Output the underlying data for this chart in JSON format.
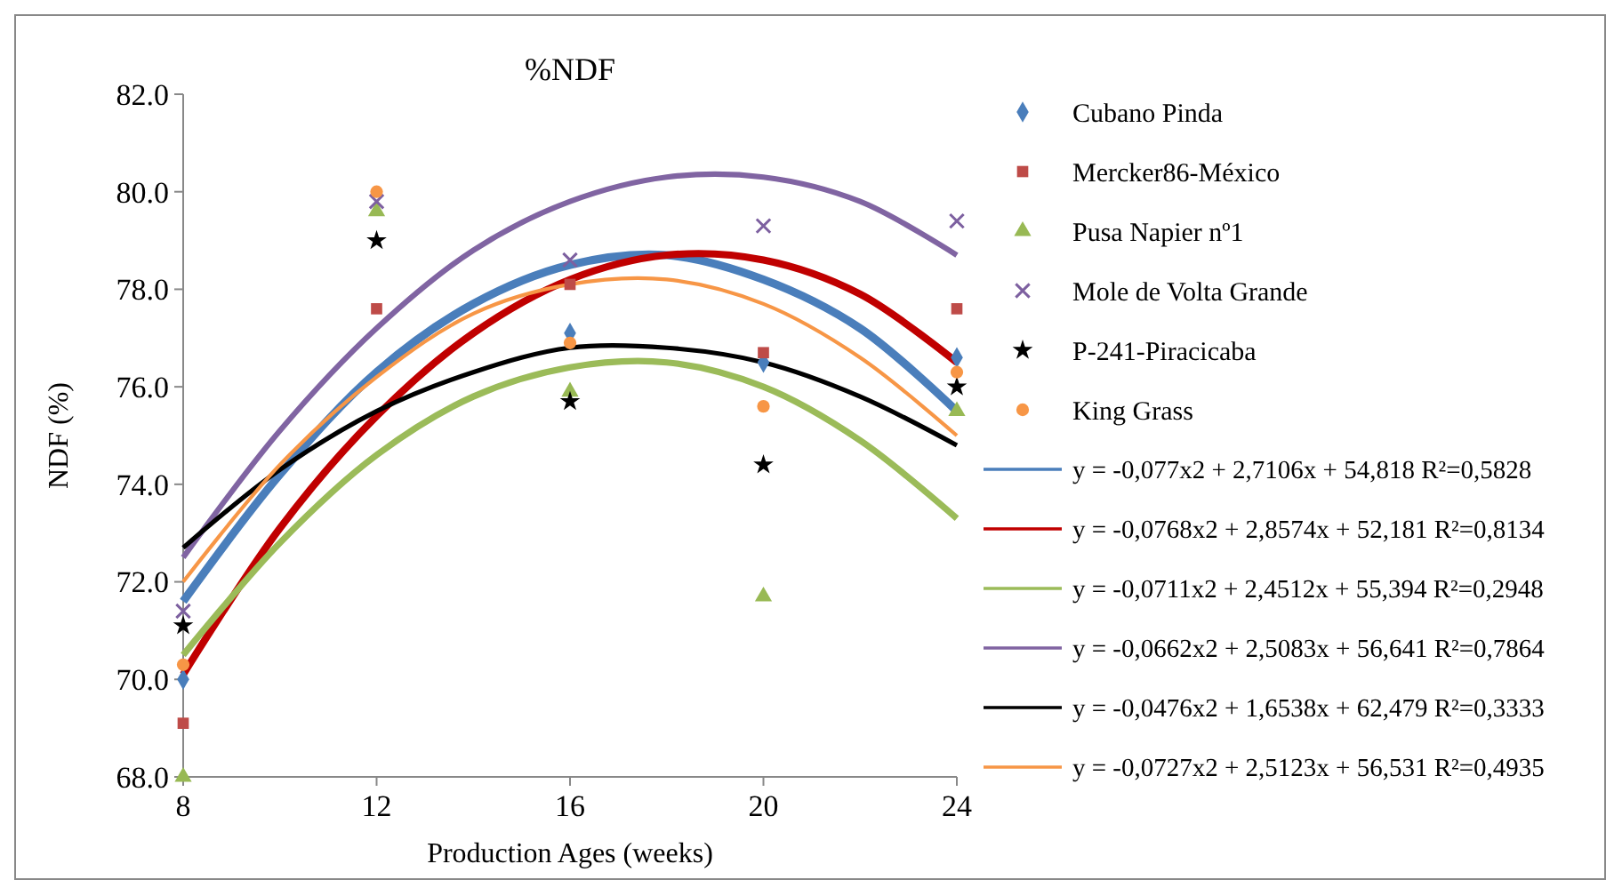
{
  "chart_data": {
    "type": "scatter",
    "title": "%NDF",
    "xlabel": "Production Ages (weeks)",
    "ylabel": "NDF (%)",
    "xlim": [
      8,
      24
    ],
    "xticks": [
      8,
      12,
      16,
      20,
      24
    ],
    "ylim": [
      68,
      82
    ],
    "yticks": [
      {
        "value": 68,
        "label": "68.0"
      },
      {
        "value": 70,
        "label": "70.0"
      },
      {
        "value": 72,
        "label": "72.0"
      },
      {
        "value": 74,
        "label": "74.0"
      },
      {
        "value": 76,
        "label": "76.0"
      },
      {
        "value": 78,
        "label": "78.0"
      },
      {
        "value": 80,
        "label": "80.0"
      },
      {
        "value": 82,
        "label": "82.0"
      }
    ],
    "x": [
      8,
      12,
      16,
      20,
      24
    ],
    "grid": false,
    "legend": "right",
    "series": [
      {
        "name": "Cubano Pinda",
        "color": "#4a7ebb",
        "marker": "diamond",
        "values": [
          70.0,
          null,
          77.1,
          76.5,
          76.6
        ]
      },
      {
        "name": "Mercker86-México",
        "color": "#be4b48",
        "marker": "square",
        "values": [
          69.1,
          77.6,
          78.1,
          76.7,
          77.6
        ]
      },
      {
        "name": "Pusa Napier nº1",
        "color": "#98b954",
        "marker": "triangle",
        "values": [
          68.0,
          79.6,
          75.9,
          71.7,
          75.5
        ]
      },
      {
        "name": "Mole de Volta Grande",
        "color": "#7d60a0",
        "marker": "cross",
        "values": [
          71.4,
          79.8,
          78.6,
          79.3,
          79.4
        ]
      },
      {
        "name": "P-241-Piracicaba",
        "color": "#000000",
        "marker": "star",
        "values": [
          71.1,
          79.0,
          75.7,
          74.4,
          76.0
        ]
      },
      {
        "name": "King Grass",
        "color": "#f79646",
        "marker": "circle",
        "values": [
          70.3,
          80.0,
          76.9,
          75.6,
          76.3
        ]
      },
      {
        "type": "line",
        "name": "y = -0,077x2 + 2,7106x + 54,818  R²=0,5828",
        "color": "#4a7ebb",
        "marker": "none",
        "x": [
          8,
          10,
          12,
          14,
          16,
          18,
          20,
          22,
          24
        ],
        "values": [
          71.6,
          74.2,
          76.3,
          77.7,
          78.5,
          78.7,
          78.2,
          77.2,
          75.5
        ]
      },
      {
        "type": "line",
        "name": "y = -0,0768x2 + 2,8574x + 52,181 R²=0,8134",
        "color": "#c00000",
        "marker": "none",
        "x": [
          8,
          10,
          12,
          14,
          16,
          18,
          20,
          22,
          24
        ],
        "values": [
          70.1,
          73.1,
          75.4,
          77.1,
          78.2,
          78.7,
          78.6,
          77.9,
          76.5
        ]
      },
      {
        "type": "line",
        "name": "y = -0,0711x2 + 2,4512x + 55,394  R²=0,2948",
        "color": "#9bbb59",
        "marker": "none",
        "x": [
          8,
          10,
          12,
          14,
          16,
          18,
          20,
          22,
          24
        ],
        "values": [
          70.5,
          72.8,
          74.6,
          75.8,
          76.4,
          76.5,
          76.0,
          74.9,
          73.3
        ]
      },
      {
        "type": "line",
        "name": "y = -0,0662x2 + 2,5083x + 56,641  R²=0,7864",
        "color": "#8064a2",
        "marker": "none",
        "x": [
          8,
          10,
          12,
          14,
          16,
          18,
          20,
          22,
          24
        ],
        "values": [
          72.5,
          75.1,
          77.2,
          78.8,
          79.8,
          80.3,
          80.3,
          79.8,
          78.7
        ]
      },
      {
        "type": "line",
        "name": "y = -0,0476x2 + 1,6538x + 62,479  R²=0,3333",
        "color": "#000000",
        "marker": "none",
        "x": [
          8,
          10,
          12,
          14,
          16,
          18,
          20,
          22,
          24
        ],
        "values": [
          72.7,
          74.3,
          75.5,
          76.3,
          76.8,
          76.8,
          76.5,
          75.8,
          74.8
        ]
      },
      {
        "type": "line",
        "name": "y = -0,0727x2 + 2,5123x + 56,531  R²=0,4935",
        "color": "#f79646",
        "marker": "none",
        "x": [
          8,
          10,
          12,
          14,
          16,
          18,
          20,
          22,
          24
        ],
        "values": [
          72.0,
          74.4,
          76.2,
          77.5,
          78.1,
          78.2,
          77.7,
          76.6,
          75.0
        ]
      }
    ]
  }
}
